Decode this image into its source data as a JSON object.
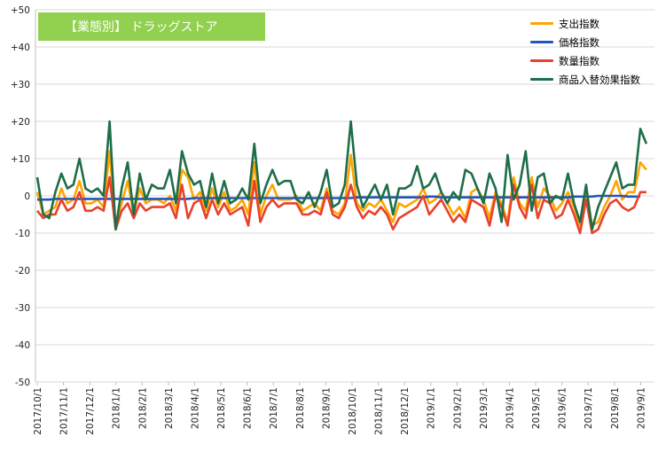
{
  "chart_data": {
    "type": "line",
    "title": "【業態別】 ドラッグストア",
    "title_bg_color": "#92d050",
    "legend_position": "top-right",
    "grid": true,
    "ylim": [
      -50,
      50
    ],
    "y_ticks": [
      "+50",
      "+40",
      "+30",
      "+20",
      "+10",
      "0",
      "-10",
      "-20",
      "-30",
      "-40",
      "-50"
    ],
    "x_ticks": [
      "2017/10/1",
      "2017/11/1",
      "2017/12/1",
      "2018/1/1",
      "2018/2/1",
      "2018/3/1",
      "2018/4/1",
      "2018/5/1",
      "2018/6/1",
      "2018/7/1",
      "2018/8/1",
      "2018/9/1",
      "2018/10/1",
      "2018/11/1",
      "2018/12/1",
      "2019/1/1",
      "2019/2/1",
      "2019/3/1",
      "2019/4/1",
      "2019/5/1",
      "2019/6/1",
      "2019/7/1",
      "2019/8/1",
      "2019/9/1"
    ],
    "points_per_month": 4.35,
    "series": [
      {
        "name": "支出指数",
        "color": "#ffa500",
        "values": [
          1,
          -5,
          -4,
          -3,
          2,
          -2,
          -1,
          4,
          -2,
          -2,
          -1,
          -3,
          12,
          -8,
          -2,
          4,
          -5,
          2,
          -2,
          -1,
          -1,
          -2,
          0,
          -4,
          7,
          5,
          -1,
          1,
          -4,
          2,
          -3,
          1,
          -4,
          -3,
          -1,
          -5,
          9,
          -5,
          0,
          3,
          -1,
          -1,
          -1,
          0,
          -4,
          -3,
          -2,
          -4,
          2,
          -4,
          -5,
          -2,
          11,
          -2,
          -4,
          -2,
          -3,
          -1,
          -4,
          -7,
          -2,
          -3,
          -2,
          -1,
          2,
          -2,
          -1,
          1,
          -2,
          -5,
          -3,
          -6,
          1,
          2,
          -1,
          -6,
          1,
          -2,
          -7,
          5,
          -2,
          -4,
          5,
          -3,
          2,
          0,
          -4,
          -2,
          1,
          -3,
          -8,
          2,
          -8,
          -7,
          -3,
          0,
          4,
          -1,
          1,
          1,
          9,
          7
        ],
        "values_note": "",
        "label_none": ""
      },
      {
        "name": "価格指数",
        "color": "#2255bb",
        "values": [
          -1,
          -1,
          -1,
          -0.8,
          -0.8,
          -0.8,
          -0.8,
          -0.8,
          -0.8,
          -0.8,
          -0.8,
          -0.8,
          -0.8,
          -0.8,
          -0.8,
          -0.8,
          -0.8,
          -0.8,
          -0.8,
          -0.8,
          -0.8,
          -0.8,
          -0.8,
          -0.8,
          -0.8,
          -0.8,
          -0.6,
          -0.6,
          -0.6,
          -0.6,
          -0.6,
          -0.6,
          -0.6,
          -0.6,
          -0.6,
          -0.6,
          -0.6,
          -0.6,
          -0.6,
          -0.6,
          -0.6,
          -0.6,
          -0.6,
          -0.6,
          -0.6,
          -0.6,
          -0.6,
          -0.6,
          -0.6,
          -0.6,
          -0.6,
          -0.6,
          -0.6,
          -0.4,
          -0.4,
          -0.4,
          -0.4,
          -0.4,
          -0.4,
          -0.4,
          -0.4,
          -0.4,
          -0.4,
          -0.4,
          -0.4,
          -0.2,
          -0.2,
          -0.4,
          -0.4,
          -0.4,
          -0.4,
          -0.4,
          -0.4,
          -0.4,
          -0.4,
          -0.4,
          -0.4,
          -0.4,
          -0.4,
          -0.4,
          -0.4,
          -0.4,
          -0.4,
          -0.4,
          -0.4,
          -0.4,
          -0.4,
          -0.4,
          -0.4,
          -0.2,
          -0.2,
          -0.2,
          -0.2,
          0,
          0,
          0,
          0,
          0,
          -0.2,
          -0.2,
          -0.2
        ]
      },
      {
        "name": "数量指数",
        "color": "#e8412c",
        "values": [
          -4,
          -6,
          -5,
          -5,
          -1,
          -4,
          -3,
          1,
          -4,
          -4,
          -3,
          -4,
          5,
          -9,
          -4,
          -2,
          -6,
          -2,
          -4,
          -3,
          -3,
          -3,
          -2,
          -6,
          3,
          -6,
          -2,
          -1,
          -6,
          -1,
          -5,
          -2,
          -5,
          -4,
          -3,
          -8,
          4,
          -7,
          -3,
          -1,
          -3,
          -2,
          -2,
          -2,
          -5,
          -5,
          -4,
          -5,
          1,
          -5,
          -6,
          -3,
          3,
          -3,
          -6,
          -4,
          -5,
          -3,
          -5,
          -9,
          -6,
          -5,
          -4,
          -3,
          0,
          -5,
          -3,
          -1,
          -4,
          -7,
          -5,
          -7,
          -1,
          -2,
          -3,
          -8,
          0,
          -3,
          -8,
          3,
          -3,
          -6,
          3,
          -6,
          -1,
          -2,
          -6,
          -5,
          -1,
          -5,
          -10,
          -1,
          -10,
          -9,
          -5,
          -2,
          -1,
          -3,
          -4,
          -3,
          1,
          1
        ]
      },
      {
        "name": "商品入替効果指数",
        "color": "#1e6e48",
        "values": [
          5,
          -5,
          -6,
          1,
          6,
          2,
          3,
          10,
          2,
          1,
          2,
          0,
          20,
          -9,
          2,
          9,
          -5,
          6,
          -1,
          3,
          2,
          2,
          7,
          -2,
          12,
          6,
          3,
          4,
          -3,
          6,
          -2,
          4,
          -2,
          -1,
          2,
          -1,
          14,
          -2,
          3,
          7,
          3,
          4,
          4,
          -1,
          -2,
          1,
          -3,
          1,
          7,
          -3,
          -2,
          3,
          20,
          3,
          -3,
          0,
          3,
          -1,
          3,
          -5,
          2,
          2,
          3,
          8,
          2,
          3,
          6,
          1,
          -2,
          1,
          -1,
          7,
          6,
          2,
          -2,
          6,
          2,
          -7,
          11,
          -1,
          3,
          12,
          -4,
          5,
          6,
          -2,
          0,
          -1,
          6,
          -2,
          -7,
          3,
          -9,
          -3,
          1,
          5,
          9,
          2,
          3,
          3,
          18,
          14
        ]
      }
    ]
  }
}
